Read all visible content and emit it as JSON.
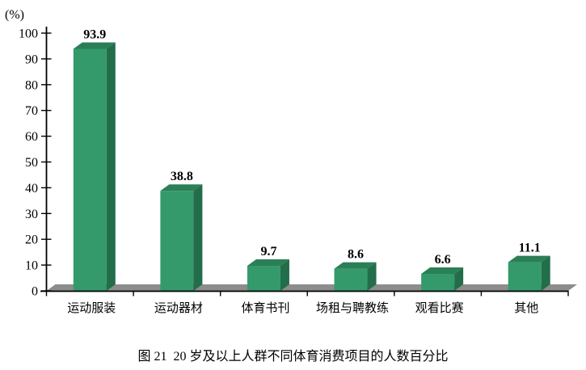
{
  "figure": {
    "unit_label": "(%)",
    "caption": "图 21  20 岁及以上人群不同体育消费项目的人数百分比"
  },
  "chart_data": {
    "type": "bar",
    "style": "3d-column",
    "title": "图 21  20 岁及以上人群不同体育消费项目的人数百分比",
    "categories": [
      "运动服装",
      "运动器材",
      "体育书刊",
      "场租与聘教练",
      "观看比赛",
      "其他"
    ],
    "values": [
      93.9,
      38.8,
      9.7,
      8.6,
      6.6,
      11.1
    ],
    "data_labels": [
      "93.9",
      "38.8",
      "9.7",
      "8.6",
      "6.6",
      "11.1"
    ],
    "xlabel": "",
    "ylabel": "(%)",
    "ylim": [
      0,
      100
    ],
    "yticks": [
      100,
      90,
      80,
      70,
      60,
      50,
      40,
      30,
      20,
      10,
      0
    ],
    "grid": false,
    "legend": null,
    "colors": {
      "bar_front": "#349A6B",
      "bar_top": "#2B7F56",
      "bar_side": "#226D4A",
      "floor": "#8C8C8C",
      "axis": "#000000",
      "text": "#000000",
      "background": "#FFFFFF"
    }
  }
}
